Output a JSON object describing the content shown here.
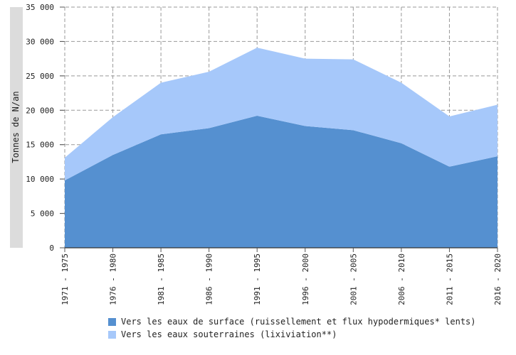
{
  "chart_data": {
    "type": "area",
    "stacked": true,
    "categories": [
      "1971 - 1975",
      "1976 - 1980",
      "1981 - 1985",
      "1986 - 1990",
      "1991 - 1995",
      "1996 - 2000",
      "2001 - 2005",
      "2006 - 2010",
      "2011 - 2015",
      "2016 - 2020"
    ],
    "series": [
      {
        "name": "Vers les eaux de surface (ruissellement et flux hypodermiques* lents)",
        "color": "#5590d0",
        "values": [
          9800,
          13500,
          16500,
          17400,
          19200,
          17700,
          17100,
          15200,
          11800,
          13300
        ]
      },
      {
        "name": "Vers les eaux souterraines (lixiviation**)",
        "color": "#a6c8fa",
        "values": [
          3300,
          5500,
          7500,
          8200,
          9900,
          9800,
          10300,
          8800,
          7300,
          7500
        ]
      }
    ],
    "ylabel": "Tonnes de N/an",
    "ylim": [
      0,
      35000
    ],
    "yticks": [
      0,
      5000,
      10000,
      15000,
      20000,
      25000,
      30000,
      35000
    ],
    "ytick_labels": [
      "0",
      "5 000",
      "10 000",
      "15 000",
      "20 000",
      "25 000",
      "30 000",
      "35 000"
    ],
    "grid": true,
    "legend_position": "bottom"
  }
}
